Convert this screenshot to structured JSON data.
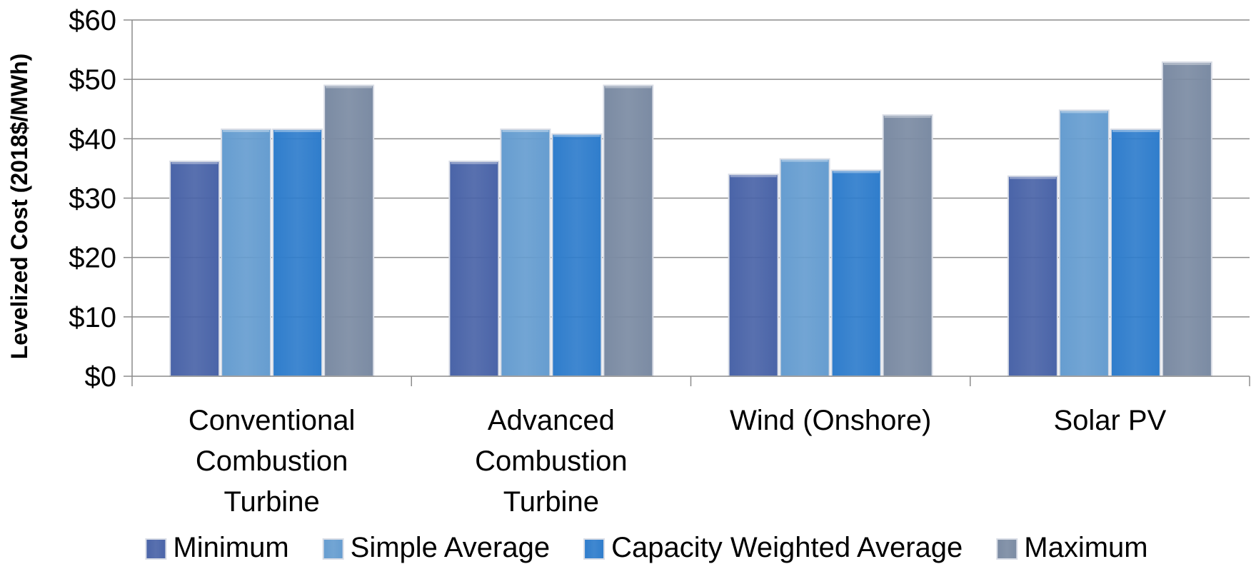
{
  "chart_data": {
    "type": "bar",
    "title": "",
    "xlabel": "",
    "ylabel": "Levelized Cost (2018$/MWh)",
    "ylim": [
      0,
      60
    ],
    "y_ticks": [
      "$0",
      "$10",
      "$20",
      "$30",
      "$40",
      "$50",
      "$60"
    ],
    "y_tick_values": [
      0,
      10,
      20,
      30,
      40,
      50,
      60
    ],
    "grid": true,
    "legend_position": "bottom",
    "categories": [
      [
        "Conventional",
        "Combustion",
        "Turbine"
      ],
      [
        "Advanced",
        "Combustion",
        "Turbine"
      ],
      [
        "Wind (Onshore)"
      ],
      [
        "Solar PV"
      ]
    ],
    "series": [
      {
        "name": "Minimum",
        "color": "#4a64a8",
        "values": [
          36.2,
          36.2,
          34.0,
          33.7
        ]
      },
      {
        "name": "Simple Average",
        "color": "#669dd0",
        "values": [
          41.6,
          41.6,
          36.6,
          44.8
        ]
      },
      {
        "name": "Capacity Weighted Average",
        "color": "#2f7dcc",
        "values": [
          41.6,
          40.8,
          34.7,
          41.6
        ]
      },
      {
        "name": "Maximum",
        "color": "#7b8ba3",
        "values": [
          49.0,
          49.0,
          44.0,
          52.9
        ]
      }
    ]
  }
}
